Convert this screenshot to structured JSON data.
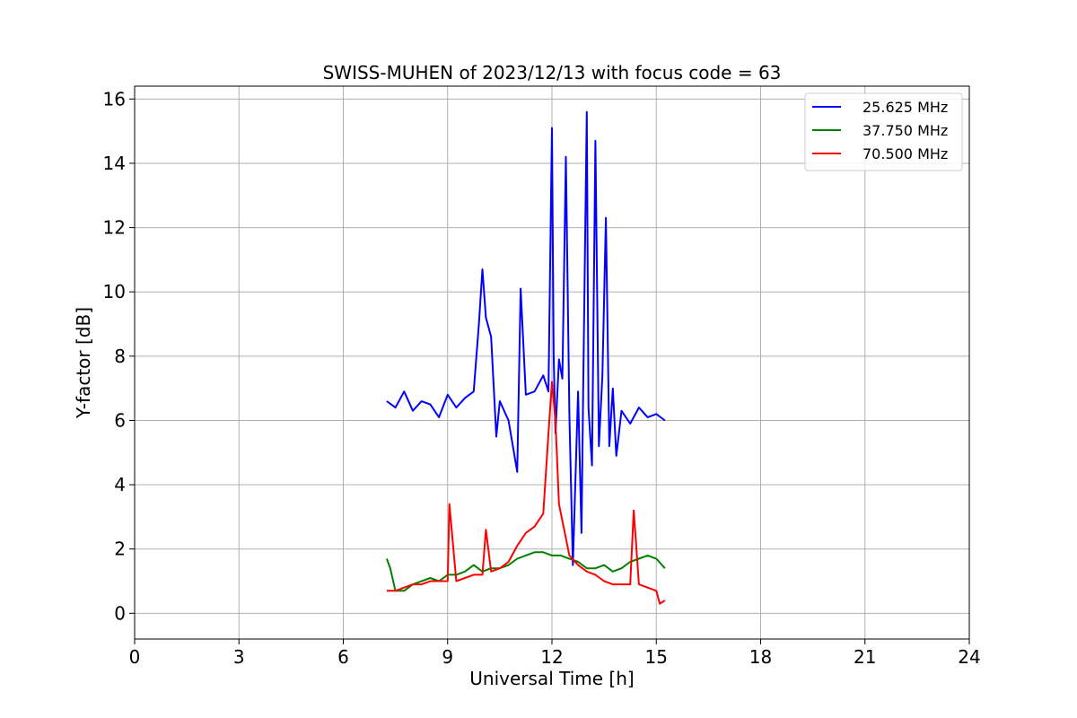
{
  "chart_data": {
    "type": "line",
    "title": "SWISS-MUHEN of 2023/12/13 with focus code = 63",
    "xlabel": "Universal Time [h]",
    "ylabel": "Y-factor [dB]",
    "xlim": [
      0,
      24
    ],
    "ylim": [
      -0.8,
      16.4
    ],
    "x_ticks": [
      0,
      3,
      6,
      9,
      12,
      15,
      18,
      21,
      24
    ],
    "y_ticks": [
      0,
      2,
      4,
      6,
      8,
      10,
      12,
      14,
      16
    ],
    "grid": true,
    "legend_position": "top-right",
    "series": [
      {
        "name": "25.625 MHz",
        "color": "#0000ff",
        "x": [
          7.25,
          7.5,
          7.75,
          8.0,
          8.25,
          8.5,
          8.75,
          9.0,
          9.25,
          9.5,
          9.75,
          9.9,
          10.0,
          10.1,
          10.25,
          10.4,
          10.5,
          10.75,
          11.0,
          11.1,
          11.25,
          11.5,
          11.75,
          11.9,
          12.0,
          12.05,
          12.1,
          12.2,
          12.3,
          12.4,
          12.5,
          12.6,
          12.75,
          12.85,
          12.9,
          13.0,
          13.05,
          13.15,
          13.25,
          13.35,
          13.45,
          13.55,
          13.65,
          13.75,
          13.85,
          14.0,
          14.25,
          14.5,
          14.75,
          15.0,
          15.25
        ],
        "y": [
          6.6,
          6.4,
          6.9,
          6.3,
          6.6,
          6.5,
          6.1,
          6.8,
          6.4,
          6.7,
          6.9,
          9.0,
          10.7,
          9.2,
          8.6,
          5.5,
          6.6,
          6.0,
          4.4,
          10.1,
          6.8,
          6.9,
          7.4,
          6.9,
          15.1,
          8.0,
          5.6,
          7.9,
          7.3,
          14.2,
          6.2,
          1.5,
          6.9,
          2.5,
          7.2,
          15.6,
          6.4,
          4.6,
          14.7,
          5.2,
          7.4,
          12.3,
          5.2,
          7.0,
          4.9,
          6.3,
          5.9,
          6.4,
          6.1,
          6.2,
          6.0
        ]
      },
      {
        "name": "37.750 MHz",
        "color": "#008000",
        "x": [
          7.25,
          7.35,
          7.5,
          7.75,
          8.0,
          8.25,
          8.5,
          8.75,
          9.0,
          9.25,
          9.5,
          9.75,
          10.0,
          10.25,
          10.5,
          10.75,
          11.0,
          11.25,
          11.5,
          11.75,
          12.0,
          12.25,
          12.5,
          12.75,
          13.0,
          13.25,
          13.5,
          13.75,
          14.0,
          14.25,
          14.5,
          14.75,
          15.0,
          15.25
        ],
        "y": [
          1.7,
          1.4,
          0.7,
          0.7,
          0.9,
          1.0,
          1.1,
          1.0,
          1.2,
          1.2,
          1.3,
          1.5,
          1.3,
          1.4,
          1.4,
          1.5,
          1.7,
          1.8,
          1.9,
          1.9,
          1.8,
          1.8,
          1.7,
          1.6,
          1.4,
          1.4,
          1.5,
          1.3,
          1.4,
          1.6,
          1.7,
          1.8,
          1.7,
          1.4
        ]
      },
      {
        "name": "70.500 MHz",
        "color": "#ff0000",
        "x": [
          7.25,
          7.5,
          7.75,
          8.0,
          8.25,
          8.5,
          8.75,
          9.0,
          9.05,
          9.25,
          9.5,
          9.75,
          10.0,
          10.1,
          10.25,
          10.5,
          10.75,
          11.0,
          11.25,
          11.5,
          11.75,
          11.9,
          12.0,
          12.1,
          12.2,
          12.35,
          12.5,
          12.75,
          13.0,
          13.25,
          13.5,
          13.75,
          14.0,
          14.25,
          14.35,
          14.5,
          14.75,
          15.0,
          15.1,
          15.25
        ],
        "y": [
          0.7,
          0.7,
          0.8,
          0.9,
          0.9,
          1.0,
          1.0,
          1.0,
          3.4,
          1.0,
          1.1,
          1.2,
          1.2,
          2.6,
          1.3,
          1.4,
          1.6,
          2.1,
          2.5,
          2.7,
          3.1,
          5.6,
          7.2,
          6.0,
          3.4,
          2.6,
          1.8,
          1.5,
          1.3,
          1.2,
          1.0,
          0.9,
          0.9,
          0.9,
          3.2,
          0.9,
          0.8,
          0.7,
          0.3,
          0.4
        ]
      }
    ]
  }
}
